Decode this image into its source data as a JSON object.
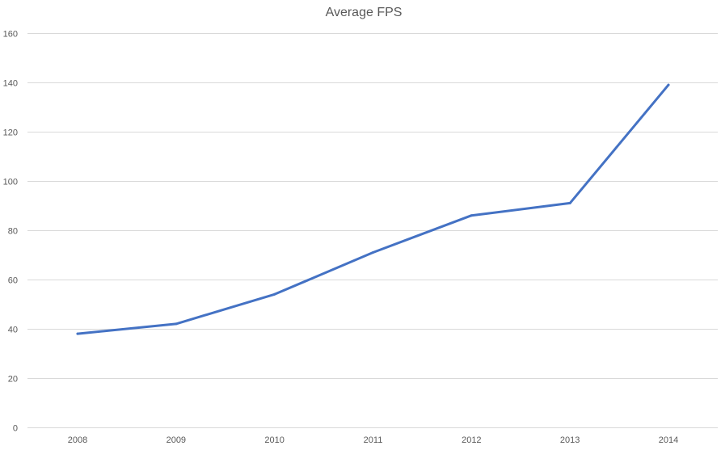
{
  "chart_data": {
    "type": "line",
    "title": "Average FPS",
    "xlabel": "",
    "ylabel": "",
    "categories": [
      "2008",
      "2009",
      "2010",
      "2011",
      "2012",
      "2013",
      "2014"
    ],
    "series": [
      {
        "values": [
          38,
          42,
          54,
          71,
          86,
          91,
          139
        ],
        "color": "#4472c4"
      }
    ],
    "ylim": [
      0,
      160
    ],
    "yticks": [
      0,
      20,
      40,
      60,
      80,
      100,
      120,
      140,
      160
    ],
    "grid": true,
    "legend": "none"
  }
}
